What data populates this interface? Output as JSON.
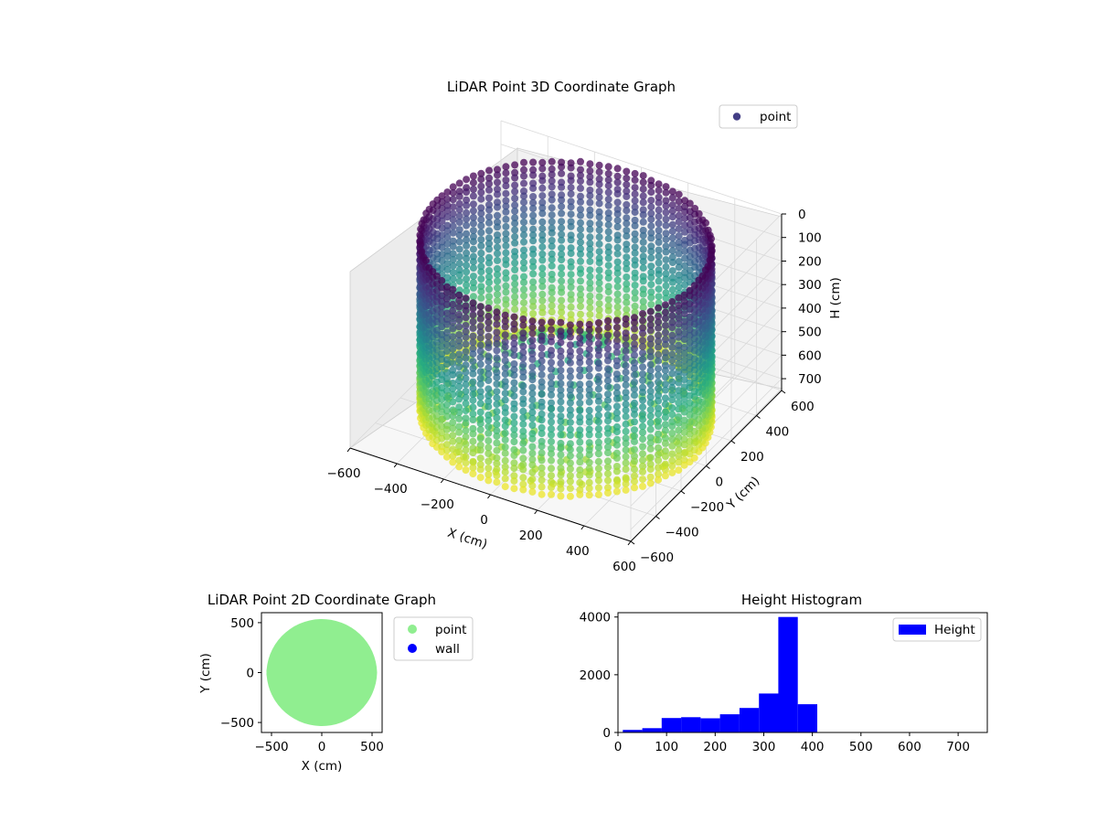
{
  "colors": {
    "background": "#ffffff",
    "pane": "#f2f2f2",
    "grid": "#d9d9d9",
    "point_2d": "#90ee90",
    "wall_2d": "#0000ff",
    "histogram": "#0000ff",
    "legend_point_3d": "#433e85"
  },
  "chart_data": [
    {
      "type": "scatter",
      "projection": "3d",
      "title": "LiDAR Point 3D Coordinate Graph",
      "xlabel": "X (cm)",
      "ylabel": "Y (cm)",
      "zlabel": "H (cm)",
      "xlim": [
        -600,
        600
      ],
      "ylim": [
        -600,
        600
      ],
      "zlim": [
        0,
        750
      ],
      "z_inverted": true,
      "x_ticks": [
        "−600",
        "−400",
        "−200",
        "0",
        "200",
        "400",
        "600"
      ],
      "y_ticks": [
        "−600",
        "−400",
        "−200",
        "0",
        "200",
        "400",
        "600"
      ],
      "z_ticks": [
        "0",
        "100",
        "200",
        "300",
        "400",
        "500",
        "600",
        "700"
      ],
      "colormap": "viridis",
      "color_by": "height",
      "grid": true,
      "legend": {
        "entries": [
          "point"
        ],
        "placement": "top-right"
      },
      "series": [
        {
          "name": "point",
          "shape": "cylindrical wall ring of points around a central floor cone",
          "wall_radius": 550,
          "wall_height_range": [
            0,
            750
          ],
          "floor_height_center": 400,
          "floor_height_edge": 700
        }
      ]
    },
    {
      "type": "scatter",
      "title": "LiDAR Point 2D Coordinate Graph",
      "xlabel": "X (cm)",
      "ylabel": "Y (cm)",
      "xlim": [
        -600,
        600
      ],
      "ylim": [
        -600,
        600
      ],
      "x_ticks": [
        "−500",
        "0",
        "500"
      ],
      "y_ticks": [
        "500",
        "0",
        "−500"
      ],
      "legend": {
        "entries": [
          "point",
          "wall"
        ],
        "placement": "outside-right"
      },
      "series": [
        {
          "name": "point",
          "shape": "filled disk",
          "radius": 550
        },
        {
          "name": "wall",
          "points": []
        }
      ]
    },
    {
      "type": "bar",
      "title": "Height Histogram",
      "xlim": [
        0,
        760
      ],
      "ylim": [
        0,
        4150
      ],
      "x_ticks": [
        "0",
        "100",
        "200",
        "300",
        "400",
        "500",
        "600",
        "700"
      ],
      "y_ticks": [
        "0",
        "2000",
        "4000"
      ],
      "legend": {
        "entries": [
          "Height"
        ],
        "placement": "top-right"
      },
      "bin_edges": [
        10,
        50,
        90,
        130,
        170,
        210,
        250,
        290,
        330,
        370,
        410,
        450,
        490,
        530,
        570,
        610,
        650,
        690,
        730
      ],
      "series": [
        {
          "name": "Height",
          "values": [
            90,
            150,
            500,
            530,
            490,
            630,
            850,
            1350,
            4000,
            980,
            5,
            3,
            3,
            2,
            2,
            2,
            2,
            2
          ]
        }
      ]
    }
  ]
}
